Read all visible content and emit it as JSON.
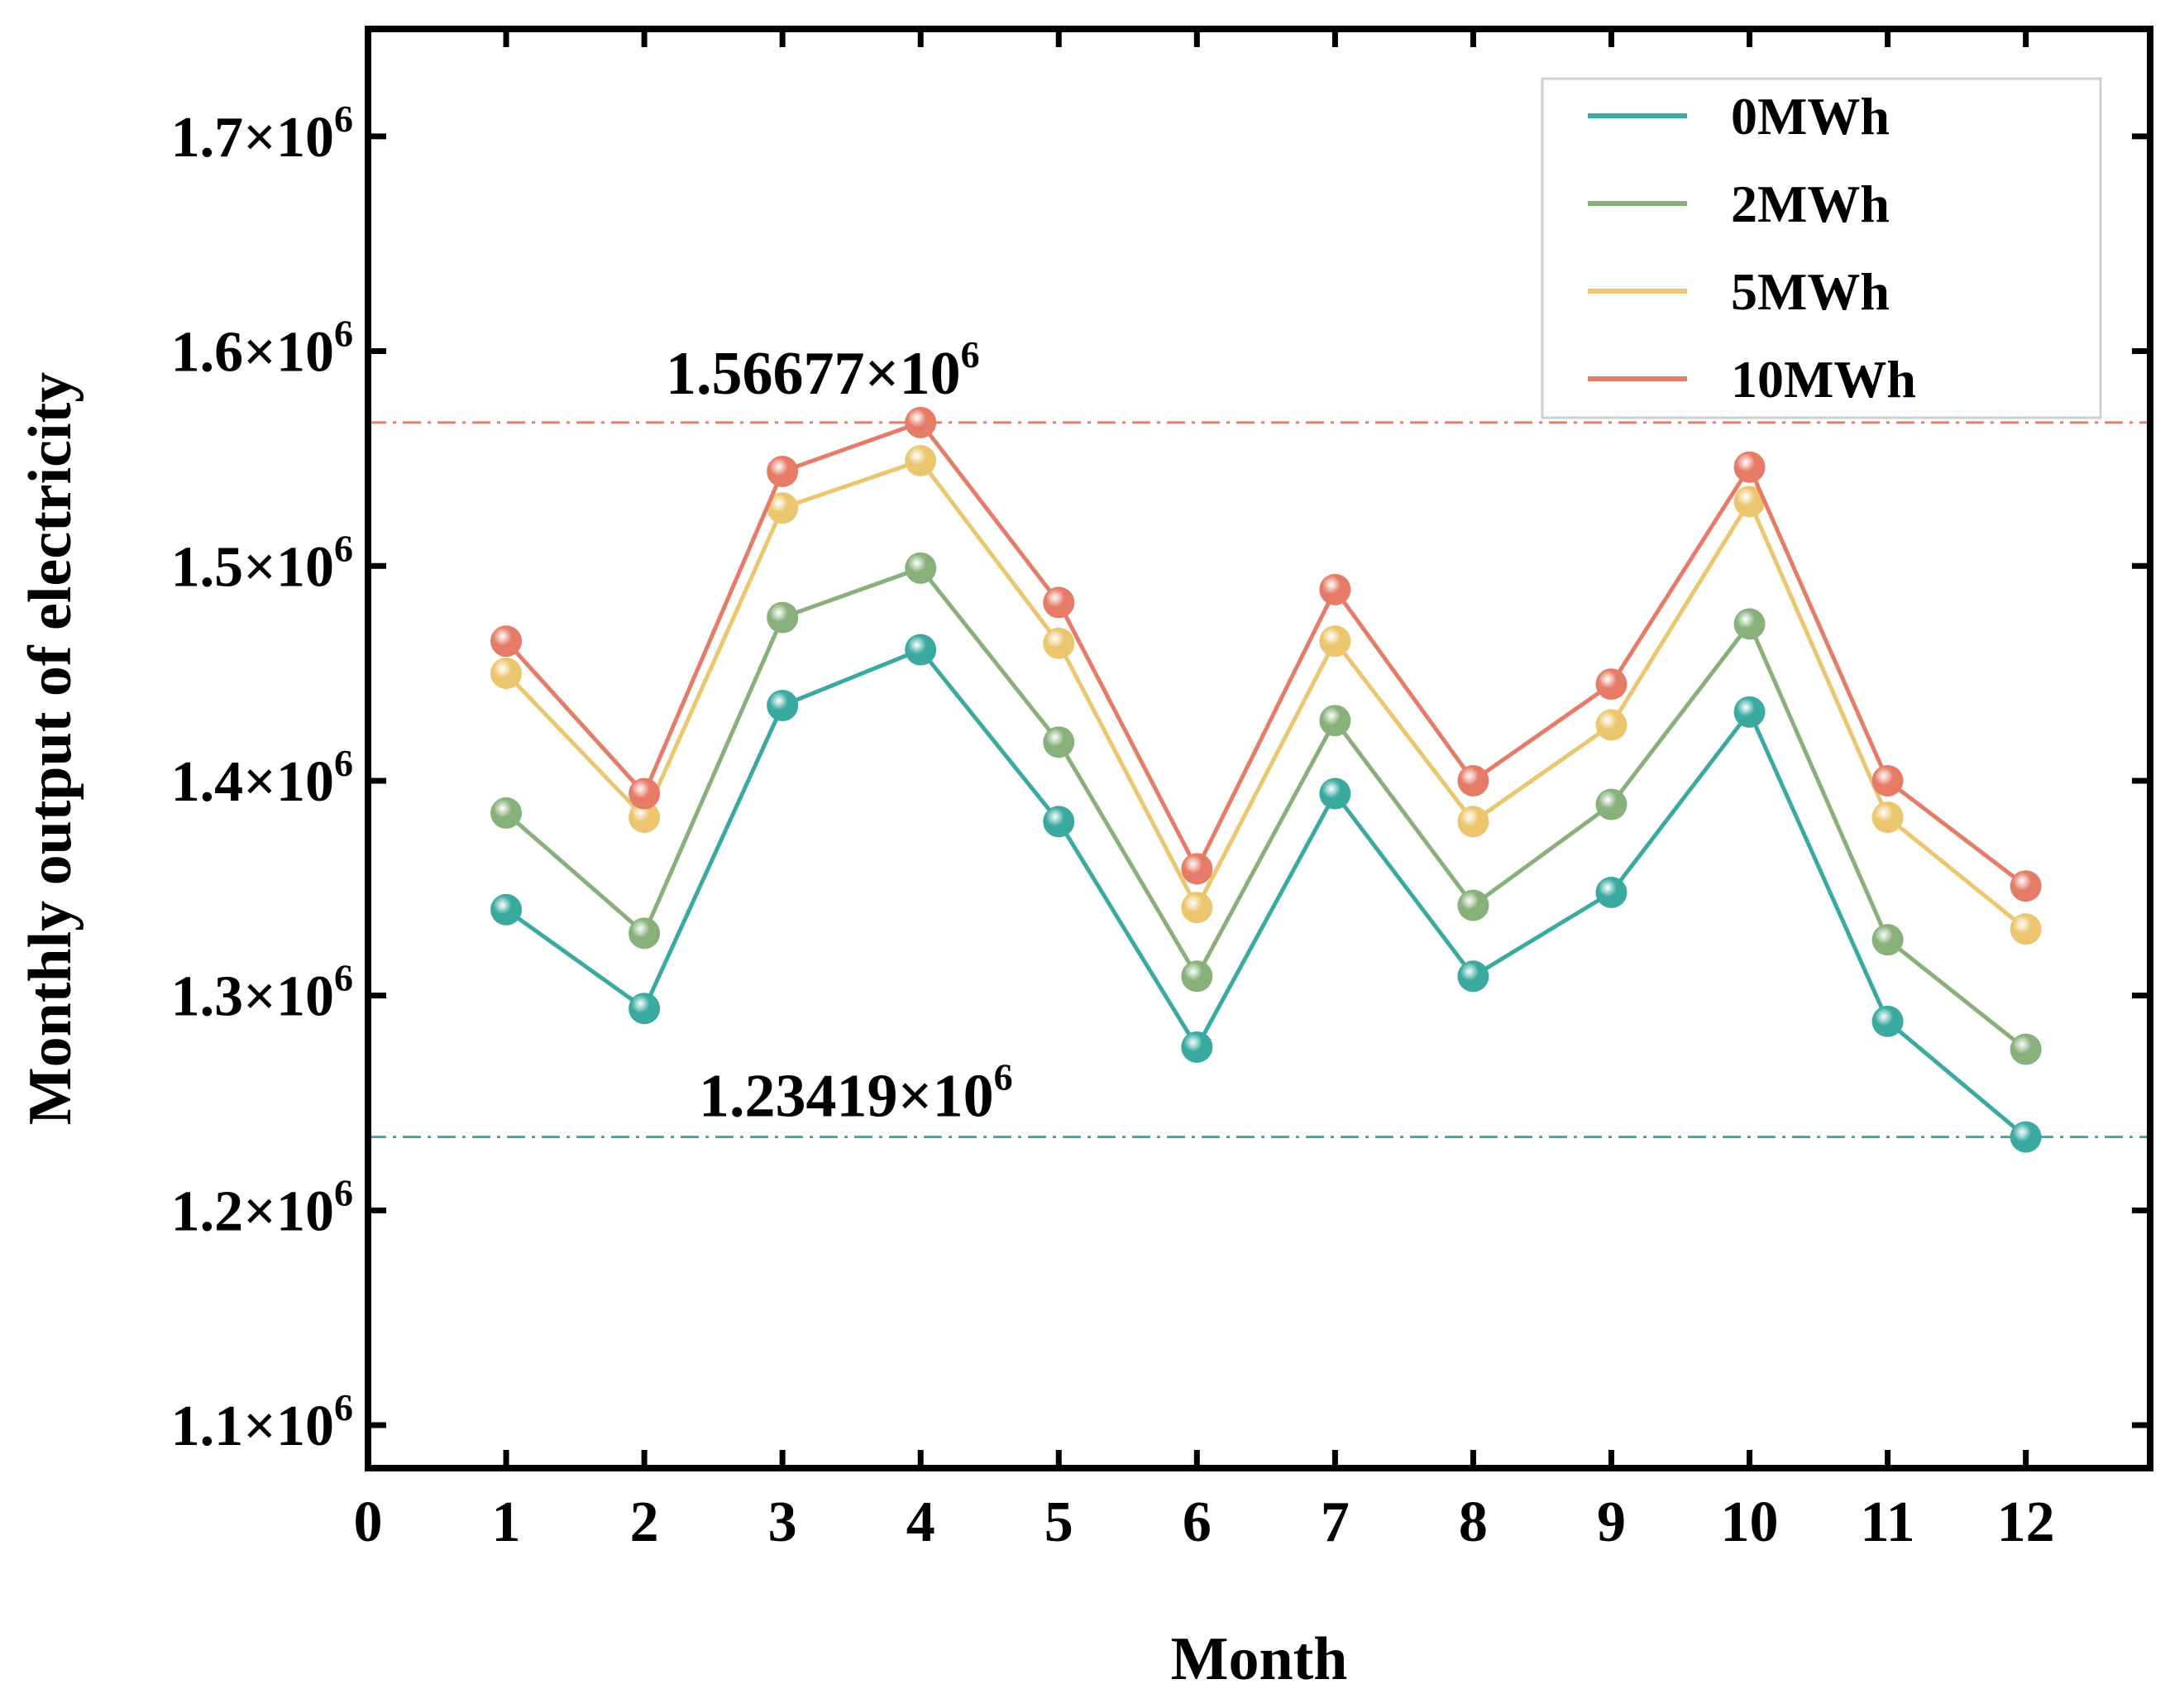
{
  "chart_data": {
    "type": "line",
    "x": [
      1,
      2,
      3,
      4,
      5,
      6,
      7,
      8,
      9,
      10,
      11,
      12
    ],
    "series": [
      {
        "name": "0MWh",
        "color": "#3aaaa0",
        "values": [
          1340000,
          1294000,
          1435000,
          1461000,
          1381000,
          1276000,
          1394000,
          1309000,
          1348000,
          1432000,
          1288000,
          1234190
        ]
      },
      {
        "name": "2MWh",
        "color": "#88b07a",
        "values": [
          1385000,
          1329000,
          1476000,
          1499000,
          1418000,
          1309000,
          1428000,
          1342000,
          1389000,
          1473000,
          1326000,
          1275000
        ]
      },
      {
        "name": "5MWh",
        "color": "#ecc66e",
        "values": [
          1450000,
          1383000,
          1527000,
          1549000,
          1464000,
          1341000,
          1465000,
          1381000,
          1426000,
          1530000,
          1383000,
          1331000
        ]
      },
      {
        "name": "10MWh",
        "color": "#e67c68",
        "values": [
          1465000,
          1394000,
          1544000,
          1566770,
          1483000,
          1359000,
          1489000,
          1400000,
          1445000,
          1546000,
          1400000,
          1351000
        ]
      }
    ],
    "xlabel": "Month",
    "ylabel": "Monthly output of electricity",
    "xlim": [
      0,
      12.9
    ],
    "ylim": [
      1080000,
      1750000
    ],
    "x_ticks": [
      0,
      1,
      2,
      3,
      4,
      5,
      6,
      7,
      8,
      9,
      10,
      11,
      12
    ],
    "y_ticks": [
      {
        "value": 1100000,
        "mantissa": "1.1×10",
        "exp": "6"
      },
      {
        "value": 1200000,
        "mantissa": "1.2×10",
        "exp": "6"
      },
      {
        "value": 1300000,
        "mantissa": "1.3×10",
        "exp": "6"
      },
      {
        "value": 1400000,
        "mantissa": "1.4×10",
        "exp": "6"
      },
      {
        "value": 1500000,
        "mantissa": "1.5×10",
        "exp": "6"
      },
      {
        "value": 1600000,
        "mantissa": "1.6×10",
        "exp": "6"
      },
      {
        "value": 1700000,
        "mantissa": "1.7×10",
        "exp": "6"
      }
    ],
    "reference_lines": [
      {
        "value": 1566770,
        "color": "#e67c68",
        "label_mantissa": "1.56677×10",
        "label_exp": "6"
      },
      {
        "value": 1234190,
        "color": "#3aaaa0",
        "label_mantissa": "1.23419×10",
        "label_exp": "6"
      }
    ],
    "legend_position": "top-right",
    "grid": false
  }
}
